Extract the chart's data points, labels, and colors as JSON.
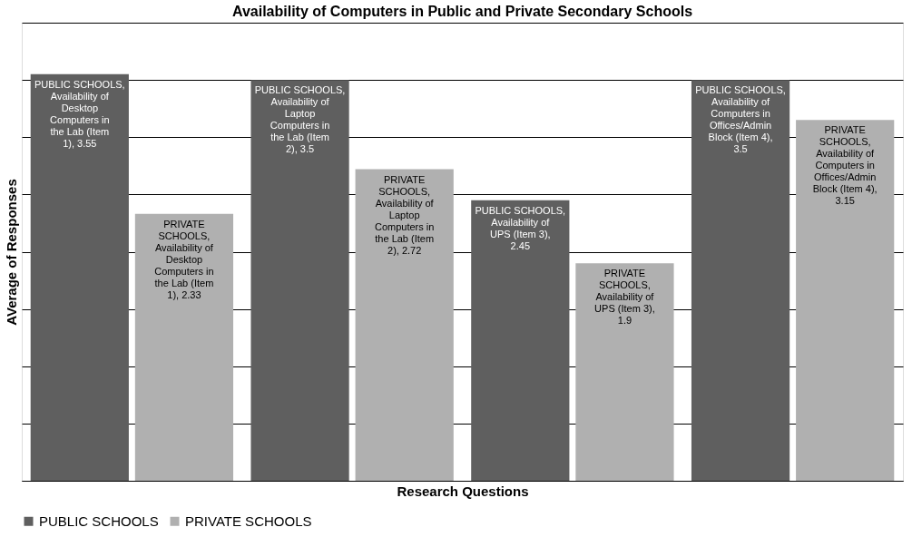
{
  "chart_data": {
    "type": "bar",
    "title": "Availability of Computers in Public and Private Secondary Schools",
    "xlabel": "Research Questions",
    "ylabel": "AVerage of Responses",
    "categories": [
      null,
      null,
      null,
      null
    ],
    "series": [
      {
        "name": "PUBLIC SCHOOLS",
        "color": "#5f5f5f",
        "values": [
          3.55,
          3.5,
          2.45,
          3.5
        ],
        "value_labels": [
          "PUBLIC SCHOOLS, Availability of Desktop Computers in the Lab (Item 1), 3.55",
          "PUBLIC SCHOOLS, Availability of Laptop Computers in the Lab (Item 2), 3.5",
          "PUBLIC SCHOOLS, Availability of UPS (Item 3), 2.45",
          "PUBLIC SCHOOLS, Availability of Computers in Offices/Admin Block (Item 4), 3.5"
        ]
      },
      {
        "name": "PRIVATE SCHOOLS",
        "color": "#b0b0b0",
        "values": [
          2.33,
          2.72,
          1.9,
          3.15
        ],
        "value_labels": [
          "PRIVATE SCHOOLS, Availability of Desktop Computers in the Lab (Item 1), 2.33",
          "PRIVATE SCHOOLS, Availability of Laptop Computers in the Lab (Item 2), 2.72",
          "PRIVATE SCHOOLS, Availability of UPS (Item 3), 1.9",
          "PRIVATE SCHOOLS, Availability of Computers in Offices/Admin Block (Item 4), 3.15"
        ]
      }
    ],
    "ylim": [
      0,
      4
    ],
    "yticks": [
      {
        "value": 0,
        "label": null
      },
      {
        "value": 0.5,
        "label": null
      },
      {
        "value": 1,
        "label": null
      },
      {
        "value": 1.5,
        "label": null
      },
      {
        "value": 2,
        "label": null
      },
      {
        "value": 2.5,
        "label": null
      },
      {
        "value": 3,
        "label": null
      },
      {
        "value": 3.5,
        "label": null
      },
      {
        "value": 4,
        "label": null
      }
    ],
    "grid": "y",
    "legend": "bottom",
    "tick_labels": false
  }
}
